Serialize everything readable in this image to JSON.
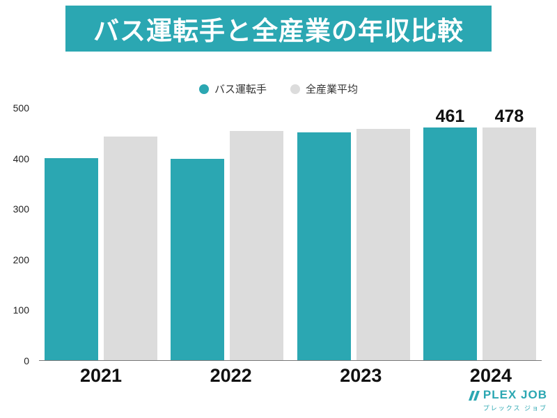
{
  "header": {
    "title": "バス運転手と全産業の年収比較",
    "bg_color": "#2BA7B2",
    "text_color": "#ffffff"
  },
  "chart_data": {
    "type": "bar",
    "title": "バス運転手と全産業の年収比較",
    "categories": [
      "2021",
      "2022",
      "2023",
      "2024"
    ],
    "series": [
      {
        "name": "バス運転手",
        "color": "#2BA7B2",
        "values": [
          400,
          399,
          452,
          461
        ],
        "value_labels": [
          null,
          null,
          null,
          "461"
        ]
      },
      {
        "name": "全産業平均",
        "color": "#DCDCDC",
        "values": [
          443,
          455,
          458,
          478
        ],
        "value_labels": [
          null,
          null,
          null,
          "478"
        ]
      }
    ],
    "xlabel": "",
    "ylabel": "",
    "ylim": [
      0,
      500
    ],
    "yticks": [
      0,
      100,
      200,
      300,
      400,
      500
    ],
    "grid": false,
    "legend_position": "top"
  },
  "footer": {
    "brand": "PLEX JOB",
    "brand_sub": "プレックス ジョブ",
    "color": "#2BA7B2"
  }
}
